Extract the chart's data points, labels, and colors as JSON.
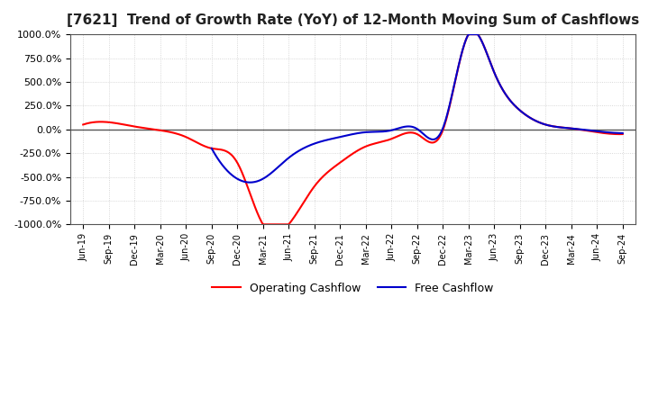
{
  "title": "[7621]  Trend of Growth Rate (YoY) of 12-Month Moving Sum of Cashflows",
  "title_fontsize": 11,
  "ylim": [
    -1000,
    1000
  ],
  "yticks": [
    -1000,
    -750,
    -500,
    -250,
    0,
    250,
    500,
    750,
    1000
  ],
  "x_labels": [
    "Jun-19",
    "Sep-19",
    "Dec-19",
    "Mar-20",
    "Jun-20",
    "Sep-20",
    "Dec-20",
    "Mar-21",
    "Jun-21",
    "Sep-21",
    "Dec-21",
    "Mar-22",
    "Jun-22",
    "Sep-22",
    "Dec-22",
    "Mar-23",
    "Jun-23",
    "Sep-23",
    "Dec-23",
    "Mar-24",
    "Jun-24",
    "Sep-24"
  ],
  "operating_cashflow": [
    50,
    75,
    30,
    -10,
    -80,
    -200,
    -350,
    -1100,
    -1100,
    -600,
    -350,
    -180,
    -100,
    -50,
    -10,
    1200,
    600,
    200,
    50,
    10,
    -30,
    -50
  ],
  "free_cashflow": [
    null,
    null,
    null,
    null,
    null,
    -200,
    -520,
    -520,
    -300,
    -150,
    -80,
    -30,
    -10,
    5,
    10,
    1200,
    600,
    200,
    50,
    10,
    -20,
    -40
  ],
  "op_color": "#ff0000",
  "free_color": "#0000cc",
  "background_color": "#ffffff",
  "grid_color": "#cccccc",
  "grid_style": "dotted",
  "legend_labels": [
    "Operating Cashflow",
    "Free Cashflow"
  ],
  "line_width": 1.5
}
